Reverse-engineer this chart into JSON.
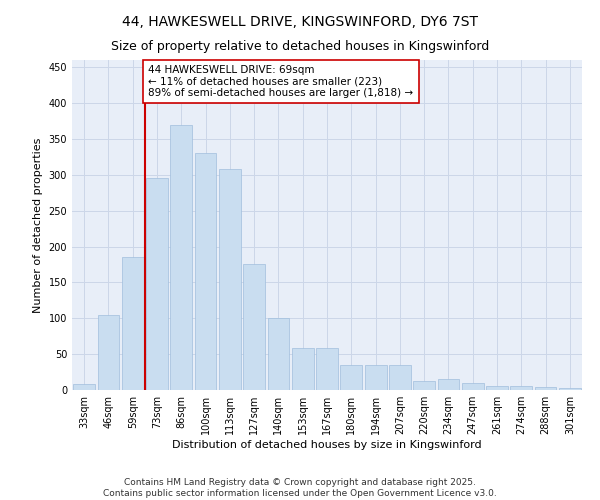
{
  "title_line1": "44, HAWKESWELL DRIVE, KINGSWINFORD, DY6 7ST",
  "title_line2": "Size of property relative to detached houses in Kingswinford",
  "xlabel": "Distribution of detached houses by size in Kingswinford",
  "ylabel": "Number of detached properties",
  "categories": [
    "33sqm",
    "46sqm",
    "59sqm",
    "73sqm",
    "86sqm",
    "100sqm",
    "113sqm",
    "127sqm",
    "140sqm",
    "153sqm",
    "167sqm",
    "180sqm",
    "194sqm",
    "207sqm",
    "220sqm",
    "234sqm",
    "247sqm",
    "261sqm",
    "274sqm",
    "288sqm",
    "301sqm"
  ],
  "values": [
    8,
    105,
    185,
    295,
    370,
    330,
    308,
    175,
    100,
    58,
    58,
    35,
    35,
    35,
    12,
    16,
    10,
    6,
    6,
    4,
    3
  ],
  "bar_color": "#c9ddf0",
  "bar_edge_color": "#a0bedd",
  "grid_color": "#ccd6e8",
  "bg_color": "#e8eef8",
  "vline_x": 2.5,
  "vline_color": "#cc0000",
  "annotation_text": "44 HAWKESWELL DRIVE: 69sqm\n← 11% of detached houses are smaller (223)\n89% of semi-detached houses are larger (1,818) →",
  "annotation_box_color": "#ffffff",
  "annotation_box_edge": "#cc0000",
  "ylim": [
    0,
    460
  ],
  "yticks": [
    0,
    50,
    100,
    150,
    200,
    250,
    300,
    350,
    400,
    450
  ],
  "footer_text": "Contains HM Land Registry data © Crown copyright and database right 2025.\nContains public sector information licensed under the Open Government Licence v3.0.",
  "title_fontsize": 10,
  "subtitle_fontsize": 9,
  "axis_label_fontsize": 8,
  "tick_fontsize": 7,
  "annotation_fontsize": 7.5,
  "footer_fontsize": 6.5
}
